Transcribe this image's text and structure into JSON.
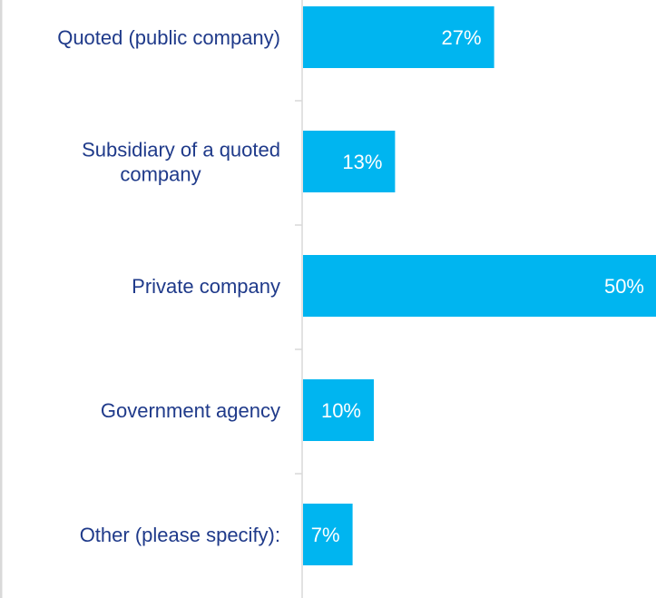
{
  "chart_data": {
    "type": "bar",
    "orientation": "horizontal",
    "categories": [
      [
        "Quoted (public company)"
      ],
      [
        "Subsidiary of a quoted",
        "company"
      ],
      [
        "Private company"
      ],
      [
        "Government agency"
      ],
      [
        "Other (please specify):"
      ]
    ],
    "values": [
      27,
      13,
      50,
      10,
      7
    ],
    "data_labels": [
      "27%",
      "13%",
      "50%",
      "10%",
      "7%"
    ],
    "xlim": [
      0,
      50
    ],
    "bar_color": "#00b5f0",
    "label_color": "#1f3a8a",
    "axis_color": "#d9d9d9",
    "grid": false,
    "legend": false
  }
}
